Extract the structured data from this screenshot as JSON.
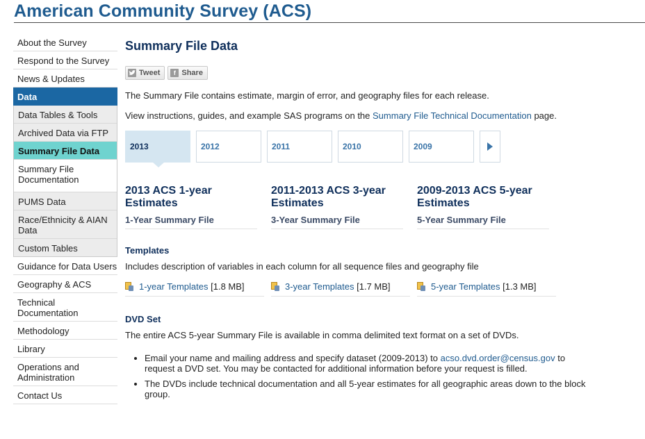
{
  "site": {
    "title": "American Community Survey (ACS)"
  },
  "sidebar": {
    "items_top": [
      {
        "label": "About the Survey"
      },
      {
        "label": "Respond to the Survey"
      },
      {
        "label": "News & Updates"
      }
    ],
    "data_label": "Data",
    "data_sub": [
      {
        "label": "Data Tables & Tools"
      },
      {
        "label": "Archived Data via FTP"
      },
      {
        "label": "Summary File Data"
      },
      {
        "label": "Summary File Documentation"
      },
      {
        "label": "PUMS Data"
      },
      {
        "label": "Race/Ethnicity & AIAN Data"
      },
      {
        "label": "Custom Tables"
      }
    ],
    "items_bottom": [
      {
        "label": "Guidance for Data Users"
      },
      {
        "label": "Geography & ACS"
      },
      {
        "label": "Technical Documentation"
      },
      {
        "label": "Methodology"
      },
      {
        "label": "Library"
      },
      {
        "label": "Operations and Administration"
      },
      {
        "label": "Contact Us"
      }
    ]
  },
  "main": {
    "title": "Summary File Data",
    "social": {
      "tweet": "Tweet",
      "share": "Share",
      "fb_glyph": "f"
    },
    "intro": "The Summary File contains estimate, margin of error, and geography files for each release.",
    "instructions_pre": "View instructions, guides, and example SAS programs on the ",
    "instructions_link": "Summary File Technical Documentation",
    "instructions_post": " page.",
    "years": [
      "2013",
      "2012",
      "2011",
      "2010",
      "2009"
    ],
    "estimates": [
      {
        "title": "2013 ACS 1-year Estimates",
        "link": "1-Year Summary File"
      },
      {
        "title": "2011-2013 ACS 3-year Estimates",
        "link": "3-Year Summary File"
      },
      {
        "title": "2009-2013 ACS 5-year Estimates",
        "link": "5-Year Summary File"
      }
    ],
    "templates_heading": "Templates",
    "templates_desc": "Includes description of variables in each column for all sequence files and geography file",
    "templates": [
      {
        "link": "1-year Templates",
        "size": "[1.8 MB]"
      },
      {
        "link": "3-year Templates",
        "size": "[1.7 MB]"
      },
      {
        "link": "5-year Templates",
        "size": "[1.3 MB]"
      }
    ],
    "dvd_heading": "DVD Set",
    "dvd_desc": "The entire ACS 5-year Summary File is available in comma delimited text format on a set of DVDs.",
    "dvd_b1_pre": "Email your name and mailing address and specify dataset (2009-2013) to ",
    "dvd_b1_link": "acso.dvd.order@census.gov",
    "dvd_b1_post": " to request a DVD set. You may be contacted for additional information before your request is filled.",
    "dvd_b2": "The DVDs include technical documentation and all 5-year estimates for all geographic areas down to the block group."
  }
}
